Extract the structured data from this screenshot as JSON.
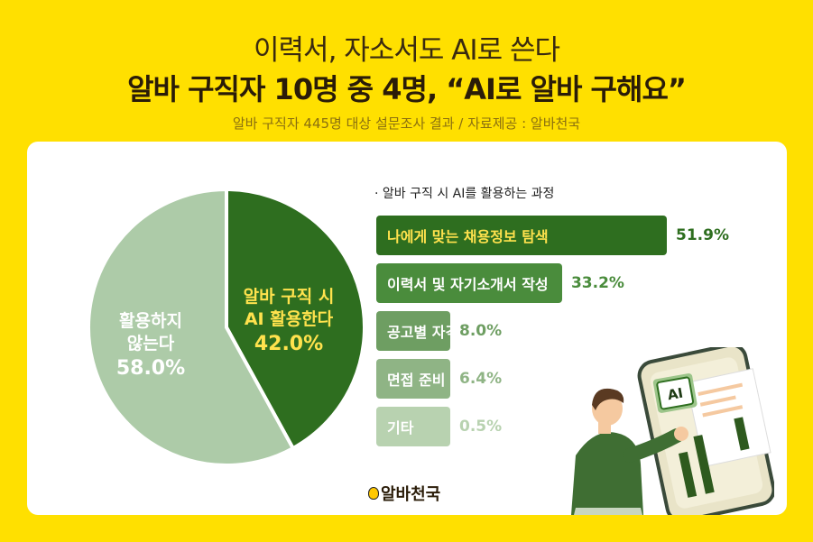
{
  "header": {
    "title_line1": "이력서, 자소서도 AI로 쓴다",
    "title_line2": "알바 구직자 10명 중 4명, “AI로 알바 구해요”",
    "subtitle": "알바 구직자 445명 대상 설문조사 결과 / 자료제공 : 알바천국"
  },
  "chart_data": [
    {
      "type": "pie",
      "slices": [
        {
          "label_line1": "알바 구직 시",
          "label_line2": "AI 활용한다",
          "value": 42.0,
          "value_text": "42.0%",
          "color": "#2E6E1F",
          "label_color": "#FFE24D"
        },
        {
          "label_line1": "활용하지",
          "label_line2": "않는다",
          "value": 58.0,
          "value_text": "58.0%",
          "color": "#ADCBA8",
          "label_color": "#FFFFFF"
        }
      ]
    },
    {
      "type": "bar",
      "title": "· 알바 구직 시 AI를 활용하는 과정",
      "max": 51.9,
      "bars": [
        {
          "label": "나에게 맞는 채용정보 탐색",
          "value": 51.9,
          "value_text": "51.9%",
          "color": "#2E6E1F",
          "text_color": "#FFE24D",
          "value_color": "#2E6E1F"
        },
        {
          "label": "이력서 및 자기소개서 작성",
          "value": 33.2,
          "value_text": "33.2%",
          "color": "#4A8C3C",
          "text_color": "#FFFFFF",
          "value_color": "#4A8C3C"
        },
        {
          "label": "공고별 자격 요건 파악",
          "value": 8.0,
          "value_text": "8.0%",
          "color": "#6E9E62",
          "text_color": "#FFFFFF",
          "value_color": "#6E9E62"
        },
        {
          "label": "면접 준비",
          "value": 6.4,
          "value_text": "6.4%",
          "color": "#8FB485",
          "text_color": "#FFFFFF",
          "value_color": "#8FB485"
        },
        {
          "label": "기타",
          "value": 0.5,
          "value_text": "0.5%",
          "color": "#B8D2B0",
          "text_color": "#FFFFFF",
          "value_color": "#B8D2B0"
        }
      ]
    }
  ],
  "illustration": {
    "badge_text": "AI"
  },
  "footer": {
    "logo_text": "알바천국"
  }
}
